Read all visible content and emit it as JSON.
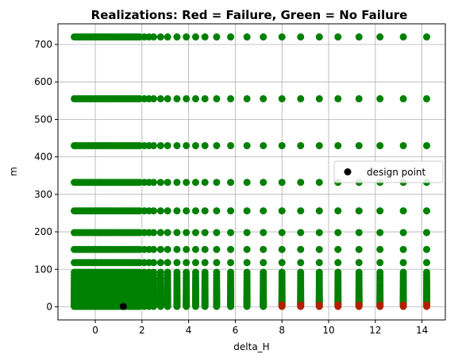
{
  "chart_data": {
    "type": "scatter",
    "title": "Realizations: Red = Failure, Green = No Failure",
    "xlabel": "delta_H",
    "ylabel": "m",
    "xlim": [
      -1.6,
      15.0
    ],
    "ylim": [
      -35,
      755
    ],
    "x_ticks": [
      0,
      2,
      4,
      6,
      8,
      10,
      12,
      14
    ],
    "y_ticks": [
      0,
      100,
      200,
      300,
      400,
      500,
      600,
      700
    ],
    "grid": true,
    "legend_placement": "center-right",
    "colors": {
      "no_failure": "#008000",
      "failure": "#b22000",
      "design_point": "#000000"
    },
    "sample_x": [
      -0.9,
      -0.8,
      -0.7,
      -0.6,
      -0.5,
      -0.4,
      -0.3,
      -0.2,
      -0.1,
      0.0,
      0.1,
      0.2,
      0.3,
      0.4,
      0.5,
      0.6,
      0.7,
      0.8,
      0.9,
      1.0,
      1.1,
      1.2,
      1.3,
      1.4,
      1.5,
      1.6,
      1.7,
      1.8,
      1.9,
      2.1,
      2.3,
      2.5,
      2.8,
      3.1,
      3.5,
      3.9,
      4.3,
      4.7,
      5.2,
      5.8,
      6.5,
      7.2,
      8.0,
      8.8,
      9.6,
      10.4,
      11.3,
      12.2,
      13.2,
      14.2
    ],
    "sample_m": [
      720,
      555,
      430,
      332,
      256,
      198,
      153,
      118,
      92,
      84,
      76,
      70,
      64,
      58,
      53,
      48,
      44,
      40,
      36,
      33,
      30,
      27,
      24,
      21,
      19,
      17,
      15,
      13,
      11,
      9,
      7,
      5,
      3,
      1
    ],
    "failure_m": [
      0,
      1,
      3,
      5
    ],
    "failure_min_x": 8.0,
    "series": [
      {
        "name": "design point",
        "x": [
          1.2
        ],
        "y": [
          1.0
        ]
      }
    ]
  }
}
